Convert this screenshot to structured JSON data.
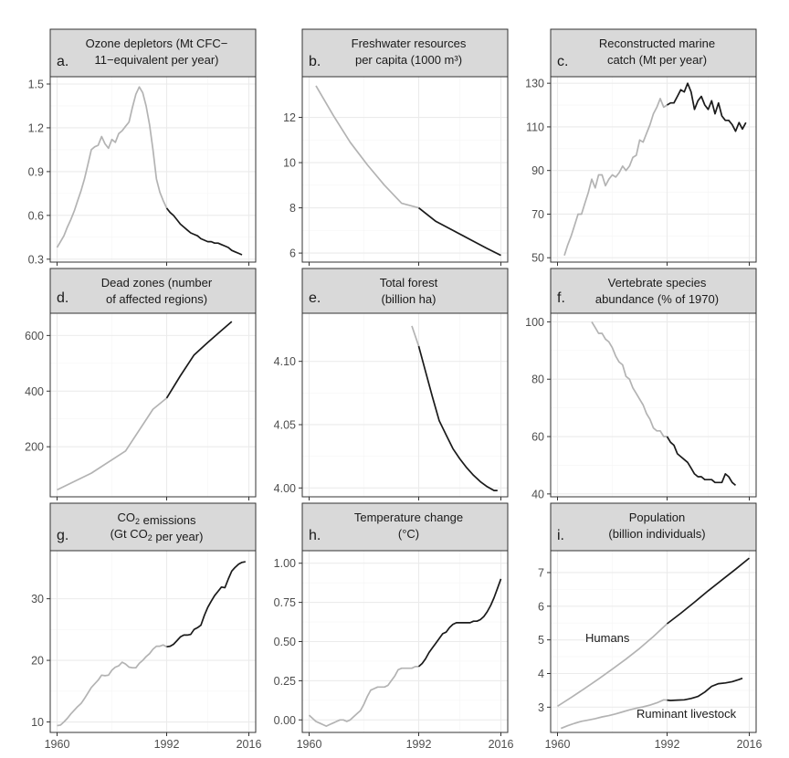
{
  "chart_data": [
    {
      "type": "line",
      "letter": "a.",
      "title": [
        "Ozone depletors (Mt CFC−",
        "11−equivalent per year)"
      ],
      "xlim": [
        1958,
        2018
      ],
      "xticks": [
        1960,
        1992,
        2016
      ],
      "ylim": [
        0.28,
        1.55
      ],
      "yticks": [
        0.3,
        0.6,
        0.9,
        1.2,
        1.5
      ],
      "ytick_labels": [
        "0.3",
        "0.6",
        "0.9",
        "1.2",
        "1.5"
      ],
      "split_year": 1992,
      "series": [
        {
          "x": [
            1960,
            1961,
            1962,
            1963,
            1964,
            1965,
            1966,
            1967,
            1968,
            1969,
            1970,
            1971,
            1972,
            1973,
            1974,
            1975,
            1976,
            1977,
            1978,
            1979,
            1980,
            1981,
            1982,
            1983,
            1984,
            1985,
            1986,
            1987,
            1988,
            1989,
            1990,
            1991,
            1992,
            1993,
            1994,
            1995,
            1996,
            1997,
            1998,
            1999,
            2000,
            2001,
            2002,
            2003,
            2004,
            2005,
            2006,
            2007,
            2008,
            2009,
            2010,
            2011,
            2012,
            2013,
            2014
          ],
          "y": [
            0.38,
            0.42,
            0.46,
            0.52,
            0.57,
            0.63,
            0.7,
            0.77,
            0.85,
            0.95,
            1.05,
            1.07,
            1.08,
            1.14,
            1.09,
            1.06,
            1.12,
            1.1,
            1.16,
            1.18,
            1.21,
            1.24,
            1.34,
            1.43,
            1.48,
            1.44,
            1.35,
            1.22,
            1.05,
            0.85,
            0.76,
            0.7,
            0.65,
            0.62,
            0.6,
            0.57,
            0.54,
            0.52,
            0.5,
            0.48,
            0.47,
            0.46,
            0.44,
            0.43,
            0.42,
            0.42,
            0.41,
            0.41,
            0.4,
            0.39,
            0.38,
            0.36,
            0.35,
            0.34,
            0.33
          ]
        }
      ]
    },
    {
      "type": "line",
      "letter": "b.",
      "title": [
        "Freshwater resources",
        "per capita (1000 m³)"
      ],
      "xlim": [
        1958,
        2018
      ],
      "xticks": [
        1960,
        1992,
        2016
      ],
      "ylim": [
        5.6,
        13.8
      ],
      "yticks": [
        6,
        8,
        10,
        12
      ],
      "ytick_labels": [
        "6",
        "8",
        "10",
        "12"
      ],
      "split_year": 1992,
      "series": [
        {
          "x": [
            1962,
            1967,
            1972,
            1977,
            1982,
            1987,
            1992,
            1997,
            2002,
            2007,
            2012,
            2016
          ],
          "y": [
            13.4,
            12.1,
            10.9,
            9.9,
            9.0,
            8.2,
            8.0,
            7.4,
            7.0,
            6.6,
            6.2,
            5.9
          ]
        }
      ]
    },
    {
      "type": "line",
      "letter": "c.",
      "title": [
        "Reconstructed marine",
        "catch (Mt per year)"
      ],
      "xlim": [
        1958,
        2018
      ],
      "xticks": [
        1960,
        1992,
        2016
      ],
      "ylim": [
        48,
        133
      ],
      "yticks": [
        50,
        70,
        90,
        110,
        130
      ],
      "ytick_labels": [
        "50",
        "70",
        "90",
        "110",
        "130"
      ],
      "split_year": 1992,
      "series": [
        {
          "x": [
            1962,
            1963,
            1964,
            1965,
            1966,
            1967,
            1968,
            1969,
            1970,
            1971,
            1972,
            1973,
            1974,
            1975,
            1976,
            1977,
            1978,
            1979,
            1980,
            1981,
            1982,
            1983,
            1984,
            1985,
            1986,
            1987,
            1988,
            1989,
            1990,
            1991,
            1992,
            1993,
            1994,
            1995,
            1996,
            1997,
            1998,
            1999,
            2000,
            2001,
            2002,
            2003,
            2004,
            2005,
            2006,
            2007,
            2008,
            2009,
            2010,
            2011,
            2012,
            2013,
            2014,
            2015
          ],
          "y": [
            51,
            56,
            60,
            65,
            70,
            70,
            75,
            80,
            86,
            82,
            88,
            88,
            83,
            86,
            88,
            87,
            89,
            92,
            90,
            92,
            96,
            97,
            104,
            103,
            107,
            111,
            116,
            119,
            123,
            119,
            120,
            121,
            121,
            124,
            127,
            126,
            130,
            126,
            118,
            122,
            124,
            120,
            118,
            122,
            116,
            121,
            115,
            113,
            113,
            111,
            108,
            112,
            109,
            112
          ]
        }
      ]
    },
    {
      "type": "line",
      "letter": "d.",
      "title": [
        "Dead zones (number",
        "of affected regions)"
      ],
      "xlim": [
        1958,
        2018
      ],
      "xticks": [
        1960,
        1992,
        2016
      ],
      "ylim": [
        20,
        680
      ],
      "yticks": [
        200,
        400,
        600
      ],
      "ytick_labels": [
        "200",
        "400",
        "600"
      ],
      "split_year": 1992,
      "series": [
        {
          "x": [
            1960,
            1970,
            1980,
            1988,
            1992,
            1996,
            2000,
            2004,
            2008,
            2011
          ],
          "y": [
            45,
            105,
            185,
            335,
            375,
            455,
            530,
            575,
            618,
            650
          ]
        }
      ]
    },
    {
      "type": "line",
      "letter": "e.",
      "title": [
        "Total forest",
        "(billion ha)"
      ],
      "xlim": [
        1958,
        2018
      ],
      "xticks": [
        1960,
        1992,
        2016
      ],
      "ylim": [
        3.993,
        4.138
      ],
      "yticks": [
        4.0,
        4.05,
        4.1
      ],
      "ytick_labels": [
        "4.00",
        "4.05",
        "4.10"
      ],
      "split_year": 1992,
      "series": [
        {
          "x": [
            1990,
            1992,
            1994,
            1996,
            1998,
            2000,
            2002,
            2004,
            2006,
            2008,
            2010,
            2012,
            2014,
            2015
          ],
          "y": [
            4.128,
            4.112,
            4.092,
            4.072,
            4.053,
            4.042,
            4.031,
            4.023,
            4.016,
            4.01,
            4.005,
            4.001,
            3.998,
            3.998
          ]
        }
      ]
    },
    {
      "type": "line",
      "letter": "f.",
      "title": [
        "Vertebrate species",
        "abundance (% of 1970)"
      ],
      "xlim": [
        1958,
        2018
      ],
      "xticks": [
        1960,
        1992,
        2016
      ],
      "ylim": [
        39,
        103
      ],
      "yticks": [
        40,
        60,
        80,
        100
      ],
      "ytick_labels": [
        "40",
        "60",
        "80",
        "100"
      ],
      "split_year": 1992,
      "series": [
        {
          "x": [
            1970,
            1971,
            1972,
            1973,
            1974,
            1975,
            1976,
            1977,
            1978,
            1979,
            1980,
            1981,
            1982,
            1983,
            1984,
            1985,
            1986,
            1987,
            1988,
            1989,
            1990,
            1991,
            1992,
            1993,
            1994,
            1995,
            1996,
            1997,
            1998,
            1999,
            2000,
            2001,
            2002,
            2003,
            2004,
            2005,
            2006,
            2007,
            2008,
            2009,
            2010,
            2011,
            2012
          ],
          "y": [
            100,
            98,
            96,
            96,
            94,
            93,
            91,
            88,
            86,
            85,
            81,
            80,
            77,
            75,
            73,
            71,
            68,
            66,
            63,
            62,
            62,
            60,
            60,
            58,
            57,
            54,
            53,
            52,
            51,
            49,
            47,
            46,
            46,
            45,
            45,
            45,
            44,
            44,
            44,
            47,
            46,
            44,
            43
          ]
        }
      ]
    },
    {
      "type": "line",
      "letter": "g.",
      "title": [
        "CO₂ emissions",
        "(Gt CO₂ per year)"
      ],
      "xlim": [
        1958,
        2018
      ],
      "xticks": [
        1960,
        1992,
        2016
      ],
      "ylim": [
        8.3,
        37.8
      ],
      "yticks": [
        10,
        20,
        30
      ],
      "ytick_labels": [
        "10",
        "20",
        "30"
      ],
      "split_year": 1992,
      "series": [
        {
          "x": [
            1960,
            1961,
            1962,
            1963,
            1964,
            1965,
            1966,
            1967,
            1968,
            1969,
            1970,
            1971,
            1972,
            1973,
            1974,
            1975,
            1976,
            1977,
            1978,
            1979,
            1980,
            1981,
            1982,
            1983,
            1984,
            1985,
            1986,
            1987,
            1988,
            1989,
            1990,
            1991,
            1992,
            1993,
            1994,
            1995,
            1996,
            1997,
            1998,
            1999,
            2000,
            2001,
            2002,
            2003,
            2004,
            2005,
            2006,
            2007,
            2008,
            2009,
            2010,
            2011,
            2012,
            2013,
            2014,
            2015
          ],
          "y": [
            9.4,
            9.5,
            10.0,
            10.6,
            11.3,
            11.9,
            12.5,
            13.0,
            13.8,
            14.7,
            15.6,
            16.2,
            16.8,
            17.6,
            17.5,
            17.6,
            18.4,
            18.9,
            19.1,
            19.7,
            19.4,
            18.9,
            18.8,
            18.8,
            19.5,
            20.0,
            20.6,
            21.1,
            21.8,
            22.3,
            22.3,
            22.5,
            22.2,
            22.3,
            22.6,
            23.2,
            23.8,
            24.1,
            24.1,
            24.2,
            25.0,
            25.3,
            25.7,
            27.3,
            28.6,
            29.6,
            30.5,
            31.2,
            31.9,
            31.8,
            33.2,
            34.5,
            35.1,
            35.6,
            35.9,
            36.0
          ]
        }
      ]
    },
    {
      "type": "line",
      "letter": "h.",
      "title": [
        "Temperature change",
        "(°C)"
      ],
      "xlim": [
        1958,
        2018
      ],
      "xticks": [
        1960,
        1992,
        2016
      ],
      "ylim": [
        -0.08,
        1.08
      ],
      "yticks": [
        0.0,
        0.25,
        0.5,
        0.75,
        1.0
      ],
      "ytick_labels": [
        "0.00",
        "0.25",
        "0.50",
        "0.75",
        "1.00"
      ],
      "split_year": 1992,
      "series": [
        {
          "x": [
            1960,
            1961,
            1962,
            1963,
            1964,
            1965,
            1966,
            1967,
            1968,
            1969,
            1970,
            1971,
            1972,
            1973,
            1974,
            1975,
            1976,
            1977,
            1978,
            1979,
            1980,
            1981,
            1982,
            1983,
            1984,
            1985,
            1986,
            1987,
            1988,
            1989,
            1990,
            1991,
            1992,
            1993,
            1994,
            1995,
            1996,
            1997,
            1998,
            1999,
            2000,
            2001,
            2002,
            2003,
            2004,
            2005,
            2006,
            2007,
            2008,
            2009,
            2010,
            2011,
            2012,
            2013,
            2014,
            2015,
            2016
          ],
          "y": [
            0.03,
            0.01,
            -0.01,
            -0.02,
            -0.03,
            -0.04,
            -0.03,
            -0.02,
            -0.01,
            0.0,
            0.0,
            -0.01,
            0.0,
            0.02,
            0.04,
            0.06,
            0.1,
            0.15,
            0.19,
            0.2,
            0.21,
            0.21,
            0.21,
            0.22,
            0.25,
            0.28,
            0.32,
            0.33,
            0.33,
            0.33,
            0.33,
            0.34,
            0.34,
            0.36,
            0.39,
            0.43,
            0.46,
            0.49,
            0.52,
            0.55,
            0.56,
            0.59,
            0.61,
            0.62,
            0.62,
            0.62,
            0.62,
            0.62,
            0.63,
            0.63,
            0.64,
            0.66,
            0.69,
            0.73,
            0.78,
            0.84,
            0.9
          ]
        }
      ]
    },
    {
      "type": "line",
      "letter": "i.",
      "title": [
        "Population",
        "(billion individuals)"
      ],
      "xlim": [
        1958,
        2018
      ],
      "xticks": [
        1960,
        1992,
        2016
      ],
      "ylim": [
        2.25,
        7.65
      ],
      "yticks": [
        3,
        4,
        5,
        6,
        7
      ],
      "ytick_labels": [
        "3",
        "4",
        "5",
        "6",
        "7"
      ],
      "split_year": 1992,
      "annotations": [
        "Humans",
        "Ruminant livestock"
      ],
      "series": [
        {
          "name": "Humans",
          "x": [
            1960,
            1964,
            1968,
            1972,
            1976,
            1980,
            1984,
            1988,
            1992,
            1996,
            2000,
            2004,
            2008,
            2012,
            2016
          ],
          "y": [
            3.03,
            3.29,
            3.56,
            3.84,
            4.13,
            4.43,
            4.75,
            5.1,
            5.48,
            5.79,
            6.12,
            6.46,
            6.78,
            7.1,
            7.43
          ]
        },
        {
          "name": "Ruminant livestock",
          "x": [
            1961,
            1963,
            1965,
            1967,
            1969,
            1971,
            1973,
            1975,
            1977,
            1979,
            1981,
            1983,
            1985,
            1987,
            1989,
            1991,
            1992,
            1993,
            1995,
            1997,
            1999,
            2001,
            2003,
            2005,
            2007,
            2009,
            2011,
            2013,
            2014
          ],
          "y": [
            2.37,
            2.45,
            2.52,
            2.58,
            2.62,
            2.66,
            2.71,
            2.75,
            2.8,
            2.86,
            2.92,
            2.97,
            3.01,
            3.06,
            3.13,
            3.22,
            3.21,
            3.2,
            3.21,
            3.22,
            3.26,
            3.32,
            3.45,
            3.62,
            3.7,
            3.72,
            3.76,
            3.82,
            3.86
          ]
        }
      ]
    }
  ]
}
